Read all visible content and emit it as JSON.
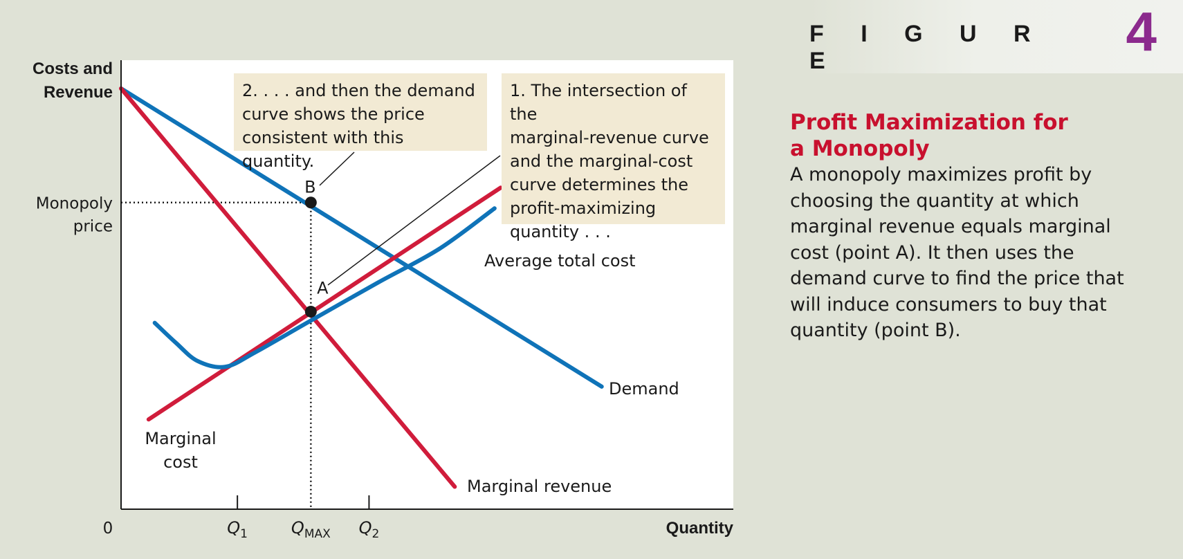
{
  "figure": {
    "word": "F I G U R E",
    "number": "4"
  },
  "caption": {
    "title": "Profit Maximization for\na Monopoly",
    "body": "A monopoly maximizes profit by choosing the quantity at which marginal revenue equals marginal cost (point A). It then uses the demand curve to find the price that will induce consumers to buy that quantity (point B)."
  },
  "annotations": {
    "step1": "1. The intersection of the\nmarginal-revenue curve\nand the marginal-cost\ncurve determines the\nprofit-maximizing\nquantity . . .",
    "step2": "2. . . . and then the demand\ncurve shows the price\nconsistent with this quantity."
  },
  "chart_data": {
    "type": "line",
    "title": "Profit Maximization for a Monopoly",
    "xlabel": "Quantity",
    "ylabel": [
      "Costs and",
      "Revenue"
    ],
    "origin_label": "0",
    "x_ticks": [
      {
        "label": "Q",
        "sub": "1",
        "x": 0.19
      },
      {
        "label": "Q",
        "sub": "MAX",
        "x": 0.31
      },
      {
        "label": "Q",
        "sub": "2",
        "x": 0.405
      }
    ],
    "y_ticks": [
      {
        "label": [
          "Monopoly",
          "price"
        ],
        "y": 0.683
      }
    ],
    "xlim": [
      0,
      1
    ],
    "ylim": [
      0,
      1
    ],
    "series": [
      {
        "name": "Demand",
        "color": "#0f73b8",
        "points": [
          [
            0.0,
            0.937
          ],
          [
            0.785,
            0.273
          ]
        ]
      },
      {
        "name": "Marginal revenue",
        "color": "#d01c3b",
        "points": [
          [
            0.0,
            0.937
          ],
          [
            0.545,
            0.05
          ]
        ]
      },
      {
        "name": "Marginal cost",
        "color": "#d01c3b",
        "points": [
          [
            0.045,
            0.2
          ],
          [
            0.62,
            0.716
          ]
        ]
      },
      {
        "name": "Average total cost",
        "color": "#0f73b8",
        "points": [
          [
            0.055,
            0.415
          ],
          [
            0.09,
            0.37
          ],
          [
            0.125,
            0.33
          ],
          [
            0.17,
            0.317
          ],
          [
            0.22,
            0.35
          ],
          [
            0.31,
            0.42
          ],
          [
            0.42,
            0.505
          ],
          [
            0.52,
            0.58
          ],
          [
            0.61,
            0.67
          ]
        ]
      }
    ],
    "points": [
      {
        "label": "A",
        "x": 0.31,
        "y": 0.44
      },
      {
        "label": "B",
        "x": 0.31,
        "y": 0.683
      }
    ],
    "series_label_text": {
      "Demand": [
        "Demand"
      ],
      "Marginal revenue": [
        "Marginal revenue"
      ],
      "Marginal cost": [
        "Marginal",
        "cost"
      ],
      "Average total cost": [
        "Average total cost"
      ]
    },
    "colors": {
      "blue": "#0f73b8",
      "red": "#d01c3b",
      "plot_bg": "#ffffff"
    }
  }
}
